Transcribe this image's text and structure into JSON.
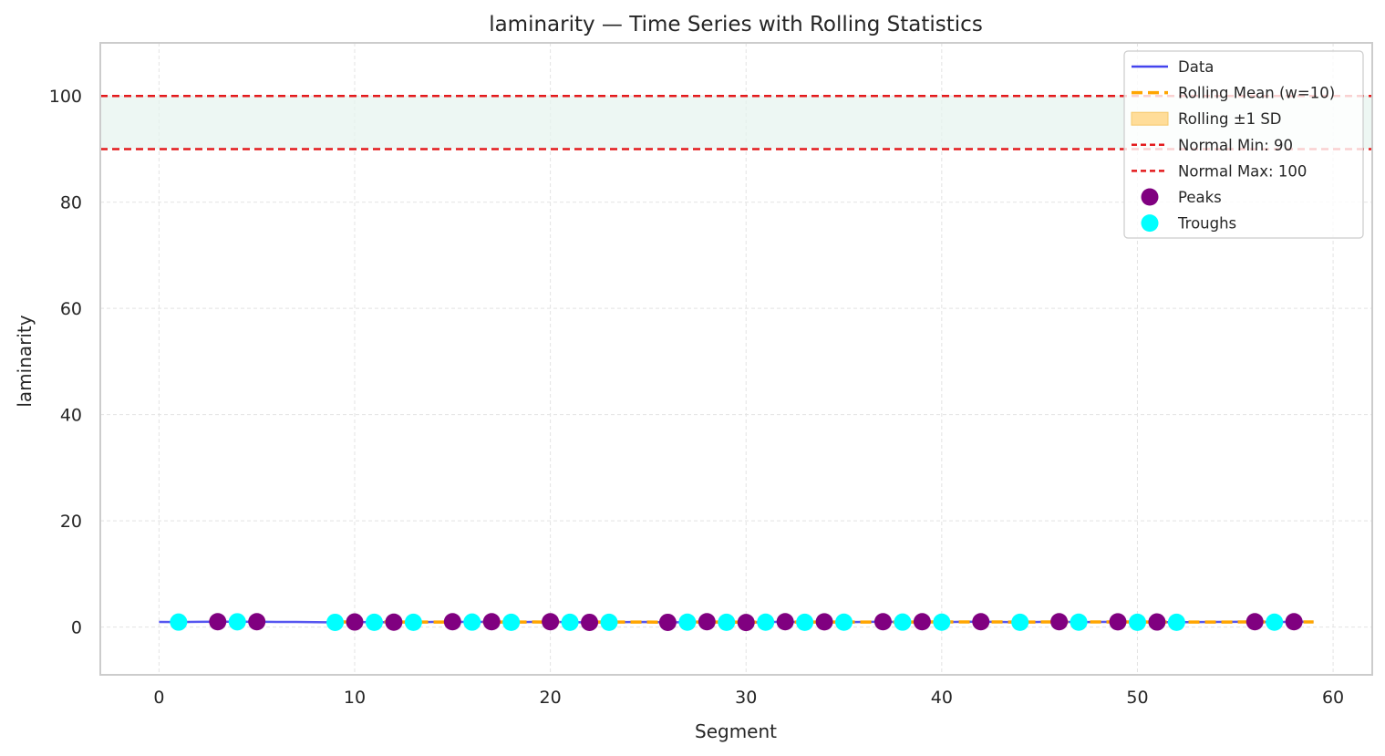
{
  "chart_data": {
    "type": "line",
    "title": "laminarity — Time Series with Rolling Statistics",
    "xlabel": "Segment",
    "ylabel": "laminarity",
    "xlim": [
      -3,
      62
    ],
    "ylim": [
      -9,
      110
    ],
    "xticks": [
      0,
      10,
      20,
      30,
      40,
      50,
      60
    ],
    "yticks": [
      0,
      20,
      40,
      60,
      80,
      100
    ],
    "grid": true,
    "legend_position": "top-right",
    "colors": {
      "data": "#4444ee",
      "rolling_mean": "#ffa500",
      "rolling_sd": "#ffdd99",
      "normal_lines": "#e31a1c",
      "normal_band": "#e6f4ee",
      "peaks": "#800080",
      "troughs": "#00ffff"
    },
    "series": [
      {
        "name": "Data",
        "x": [
          0,
          1,
          2,
          3,
          4,
          5,
          6,
          7,
          8,
          9,
          10,
          11,
          12,
          13,
          14,
          15,
          16,
          17,
          18,
          19,
          20,
          21,
          22,
          23,
          24,
          25,
          26,
          27,
          28,
          29,
          30,
          31,
          32,
          33,
          34,
          35,
          36,
          37,
          38,
          39,
          40,
          41,
          42,
          43,
          44,
          45,
          46,
          47,
          48,
          49,
          50,
          51,
          52,
          53,
          54,
          55,
          56,
          57,
          58,
          59
        ],
        "y": [
          0.95,
          0.93,
          0.98,
          1.0,
          0.99,
          1.0,
          0.97,
          0.95,
          0.92,
          0.88,
          0.95,
          0.9,
          0.92,
          0.9,
          0.95,
          1.0,
          0.93,
          1.0,
          0.9,
          0.95,
          1.0,
          0.9,
          0.88,
          0.9,
          0.93,
          0.95,
          0.88,
          0.92,
          1.0,
          0.9,
          0.85,
          0.92,
          1.0,
          0.9,
          0.98,
          0.92,
          0.95,
          1.0,
          0.93,
          1.0,
          0.92,
          0.98,
          1.0,
          0.95,
          0.9,
          0.95,
          1.0,
          0.92,
          0.95,
          0.98,
          0.9,
          0.95,
          0.9,
          0.93,
          0.95,
          0.98,
          1.0,
          0.92,
          1.0,
          0.98
        ]
      },
      {
        "name": "Rolling Mean (w=10)",
        "x": [
          9,
          10,
          11,
          12,
          13,
          14,
          15,
          16,
          17,
          18,
          19,
          20,
          21,
          22,
          23,
          24,
          25,
          26,
          27,
          28,
          29,
          30,
          31,
          32,
          33,
          34,
          35,
          36,
          37,
          38,
          39,
          40,
          41,
          42,
          43,
          44,
          45,
          46,
          47,
          48,
          49,
          50,
          51,
          52,
          53,
          54,
          55,
          56,
          57,
          58,
          59
        ],
        "y": [
          0.96,
          0.96,
          0.96,
          0.95,
          0.94,
          0.94,
          0.94,
          0.94,
          0.94,
          0.94,
          0.95,
          0.94,
          0.94,
          0.94,
          0.94,
          0.93,
          0.93,
          0.92,
          0.93,
          0.93,
          0.93,
          0.92,
          0.92,
          0.93,
          0.93,
          0.93,
          0.93,
          0.94,
          0.94,
          0.94,
          0.95,
          0.95,
          0.95,
          0.95,
          0.95,
          0.94,
          0.95,
          0.95,
          0.95,
          0.95,
          0.95,
          0.95,
          0.94,
          0.94,
          0.94,
          0.94,
          0.95,
          0.95,
          0.95,
          0.95,
          0.95
        ]
      }
    ],
    "rolling_sd": {
      "name": "Rolling ±1 SD",
      "sd": 0.04
    },
    "normal_range": {
      "min": 90,
      "max": 100,
      "min_label": "Normal Min: 90",
      "max_label": "Normal Max: 100"
    },
    "peaks": {
      "name": "Peaks",
      "x": [
        3,
        5,
        10,
        12,
        15,
        17,
        20,
        22,
        26,
        28,
        30,
        32,
        34,
        37,
        39,
        42,
        46,
        49,
        51,
        56,
        58
      ],
      "y": [
        1.0,
        1.0,
        0.95,
        0.92,
        1.0,
        1.0,
        1.0,
        0.88,
        0.88,
        1.0,
        0.85,
        1.0,
        0.98,
        1.0,
        1.0,
        1.0,
        1.0,
        0.98,
        0.95,
        1.0,
        1.0
      ]
    },
    "troughs": {
      "name": "Troughs",
      "x": [
        1,
        4,
        9,
        11,
        13,
        16,
        18,
        21,
        23,
        27,
        29,
        31,
        33,
        35,
        38,
        40,
        44,
        47,
        50,
        52,
        57
      ],
      "y": [
        0.93,
        0.99,
        0.88,
        0.9,
        0.9,
        0.93,
        0.9,
        0.9,
        0.9,
        0.92,
        0.9,
        0.92,
        0.9,
        0.92,
        0.93,
        0.92,
        0.9,
        0.92,
        0.9,
        0.9,
        0.92
      ]
    },
    "legend": [
      "Data",
      "Rolling Mean (w=10)",
      "Rolling ±1 SD",
      "Normal Min: 90",
      "Normal Max: 100",
      "Peaks",
      "Troughs"
    ]
  }
}
